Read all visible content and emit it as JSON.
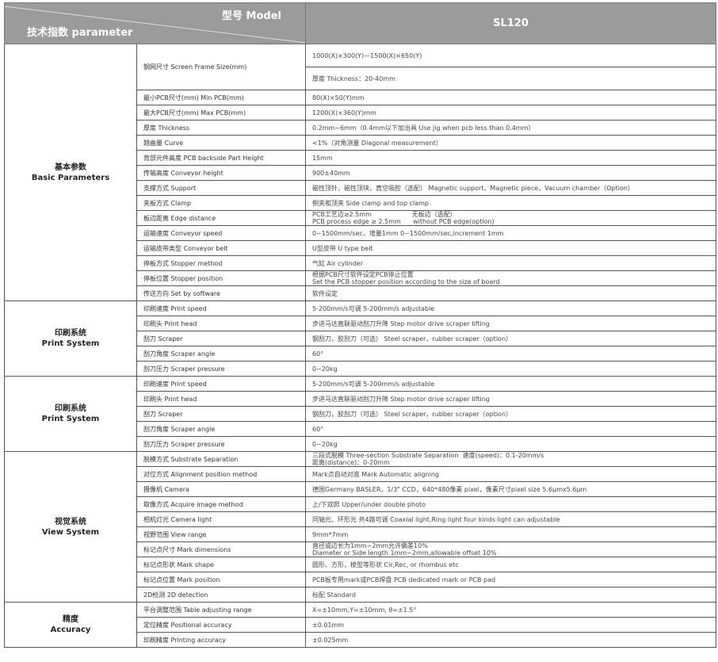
{
  "header": {
    "parameter": "技术指数 parameter",
    "model_label": "型号 Model",
    "model": "SL120",
    "header_bg": "#9a9c9c"
  },
  "groups": [
    {
      "name_cn": "基本参数",
      "name_en": "Basic Parameters",
      "rows": [
        {
          "label": "钢网尺寸  Screen Frame Size(mm)",
          "values": [
            "1000(X)×300(Y)—1500(X)×650(Y)",
            "厚度 Thickness：20-40mm"
          ]
        },
        {
          "label": "最小PCB尺寸(mm)  Min PCB(mm)",
          "values": [
            "80(X)×50(Y)mm"
          ]
        },
        {
          "label": "最大PCB尺寸(mm)  Max PCB(mm)",
          "values": [
            "1200(X)×360(Y)mm"
          ]
        },
        {
          "label": "厚度  Thickness",
          "values": [
            "0.2mm~6mm（0.4mm以下加治具 Use jig when pcb less than 0.4mm）"
          ]
        },
        {
          "label": "翘曲量  Curve",
          "values": [
            "<1%（对角测量 Diagonal measurement）"
          ]
        },
        {
          "label": "背部元件高度  PCB backside Part Height",
          "values": [
            "15mm"
          ]
        },
        {
          "label": "传输高度  Conveyor height",
          "values": [
            "900±40mm"
          ]
        },
        {
          "label": "支撑方式  Support",
          "values": [
            "磁性顶针，磁性顶块，真空吸腔（选配）  Magnetic support，Magnetic piece，Vacuum chamber（Option）"
          ]
        },
        {
          "label": "夹板方式  Clamp",
          "values": [
            "侧夹和顶夹  Side clamp and top clamp"
          ]
        },
        {
          "label": "板边距离  Edge distance",
          "values": [
            "PCB工艺边≥2.5mm                    无板边（选配）",
            "PCB process edge ≥ 2.5mm      without PCB edge(option)"
          ],
          "stacked": true
        },
        {
          "label": "运输速度  Conveyor speed",
          "values": [
            "0~1500mm/sec，增量1mm   0~1500mm/sec,increment 1mm"
          ]
        },
        {
          "label": "运输皮带类型  Conveyor belt",
          "values": [
            "U型皮带  U type belt"
          ]
        },
        {
          "label": "停板方式  Stopper method",
          "values": [
            "气缸 Air cylinder"
          ]
        },
        {
          "label": "停板位置  Stopper position",
          "values": [
            "根据PCB尺寸软件设定PCB停止位置",
            "Set the PCB stopper position according to the size of board"
          ],
          "stacked": true
        },
        {
          "label": "传送方向  Set by software",
          "values": [
            "软件设定"
          ]
        }
      ]
    },
    {
      "name_cn": "印刷系统",
      "name_en": "Print System",
      "rows": [
        {
          "label": "印刷速度  Print speed",
          "values": [
            "5-200mm/s可调  5-200mm/s adjustable"
          ]
        },
        {
          "label": "印刷头  Print head",
          "values": [
            "步进马达直联驱动刮刀升降  Step motor drive scraper lifting"
          ]
        },
        {
          "label": "刮刀  Scraper",
          "values": [
            "钢刮刀，胶刮刀（可选）  Steel scraper，rubber scraper（option）"
          ]
        },
        {
          "label": "刮刀角度  Scraper angle",
          "values": [
            "60°"
          ]
        },
        {
          "label": "刮刀压力  Scraper pressure",
          "values": [
            "0~20kg"
          ]
        }
      ]
    },
    {
      "name_cn": "印刷系统",
      "name_en": "Print System",
      "rows": [
        {
          "label": "印刷速度  Print speed",
          "values": [
            "5-200mm/s可调  5-200mm/s adjustable"
          ]
        },
        {
          "label": "印刷头  Print head",
          "values": [
            "步进马达直联驱动刮刀升降  Step motor drive scraper lifting"
          ]
        },
        {
          "label": "刮刀  Scraper",
          "values": [
            "钢刮刀，胶刮刀（可选）  Steel scraper，rubber scraper（option）"
          ]
        },
        {
          "label": "刮刀角度  Scraper angle",
          "values": [
            "60°"
          ]
        },
        {
          "label": "刮刀压力  Scraper pressure",
          "values": [
            "0~20kg"
          ]
        }
      ]
    },
    {
      "name_cn": "视觉系统",
      "name_en": "View System",
      "rows": [
        {
          "label": "脱模方式  Substrate Separation",
          "values": [
            "三段式脱模 Three-section Substrate Separation  速度(speed)：0.1-20mm/s",
            "距离(distance)：0-20mm"
          ],
          "stacked": true
        },
        {
          "label": "对位方式  Alignment position method",
          "values": [
            "Mark点自动对准  Mark Automatic aligning"
          ]
        },
        {
          "label": "摄像机  Camera",
          "values": [
            "德国Germany BASLER，1/3\" CCD，640*480像素 pixel，像素尺寸pixel size 5.6μmx5.6μm"
          ]
        },
        {
          "label": "取像方式  Acquire image method",
          "values": [
            "上/下双照  Upper/under double photo"
          ]
        },
        {
          "label": "相机灯光  Camera light",
          "values": [
            "同轴光、环形光 共4路可调  Coaxial light,Ring light four kinds light can adjustable"
          ]
        },
        {
          "label": "视野范围  View range",
          "values": [
            "9mm*7mm"
          ]
        },
        {
          "label": "标记点尺寸  Mark dimensions",
          "values": [
            "直径或边长为1mm~2mm允许偏差10%",
            "Diameter or Side length 1mm~2mm,allowable offset 10%"
          ],
          "stacked": true
        },
        {
          "label": "标记点形状  Mark shape",
          "values": [
            "圆形、方形，棱型等形状  Cir,Rec, or rhombus etc"
          ]
        },
        {
          "label": "标记点位置  Mark position",
          "values": [
            "PCB板专用mark或PCB焊盘  PCB dedicated mark or PCB pad"
          ]
        },
        {
          "label": "2D检测  2D detection",
          "values": [
            "标配 Standard"
          ]
        }
      ]
    },
    {
      "name_cn": "精度",
      "name_en": "Accuracy",
      "rows": [
        {
          "label": "平台调整范围  Table adjusting range",
          "values": [
            "X=±10mm,Y=±10mm, θ=±1.5°"
          ]
        },
        {
          "label": "定位精度  Positional accuracy",
          "values": [
            "±0.01mm"
          ]
        },
        {
          "label": "印刷精度  Printing accuracy",
          "values": [
            "±0.025mm"
          ]
        }
      ]
    }
  ]
}
